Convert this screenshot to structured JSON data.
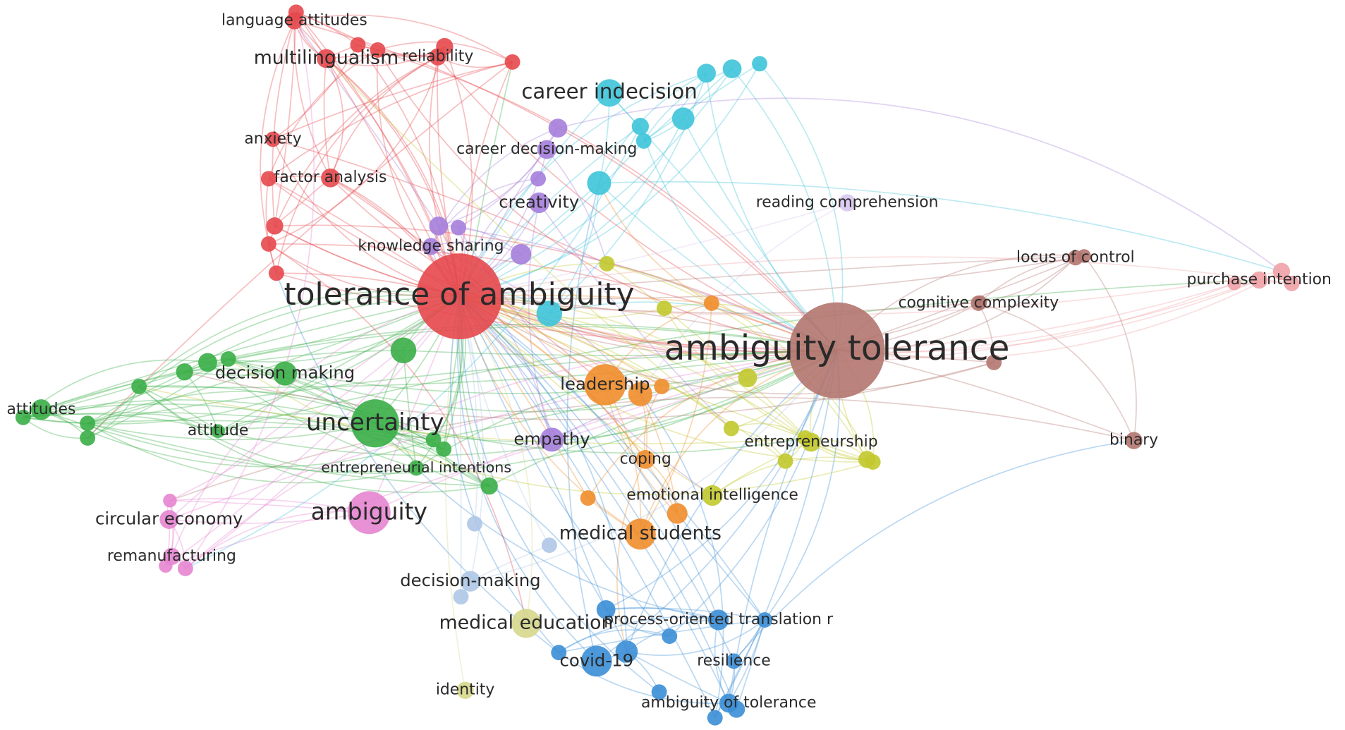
{
  "nodes": [
    {
      "label": "tolerance of ambiguity"
    },
    {
      "label": "ambiguity tolerance"
    },
    {
      "label": "uncertainty"
    },
    {
      "label": "ambiguity"
    },
    {
      "label": "career indecision"
    },
    {
      "label": "multilingualism"
    },
    {
      "label": "reliability"
    },
    {
      "label": "language attitudes"
    },
    {
      "label": "anxiety"
    },
    {
      "label": "factor analysis"
    },
    {
      "label": "career decision-making"
    },
    {
      "label": "creativity"
    },
    {
      "label": "knowledge sharing"
    },
    {
      "label": "reading comprehension"
    },
    {
      "label": "locus of control"
    },
    {
      "label": "purchase intention"
    },
    {
      "label": "cognitive complexity"
    },
    {
      "label": "decision making"
    },
    {
      "label": "attitudes"
    },
    {
      "label": "attitude"
    },
    {
      "label": "leadership"
    },
    {
      "label": "empathy"
    },
    {
      "label": "entrepreneurship"
    },
    {
      "label": "binary"
    },
    {
      "label": "coping"
    },
    {
      "label": "entrepreneurial intentions"
    },
    {
      "label": "emotional intelligence"
    },
    {
      "label": "circular economy"
    },
    {
      "label": "medical students"
    },
    {
      "label": "remanufacturing"
    },
    {
      "label": "decision-making"
    },
    {
      "label": "medical education"
    },
    {
      "label": "process-oriented translation r"
    },
    {
      "label": "covid-19"
    },
    {
      "label": "resilience"
    },
    {
      "label": "identity"
    },
    {
      "label": "ambiguity of tolerance"
    }
  ]
}
